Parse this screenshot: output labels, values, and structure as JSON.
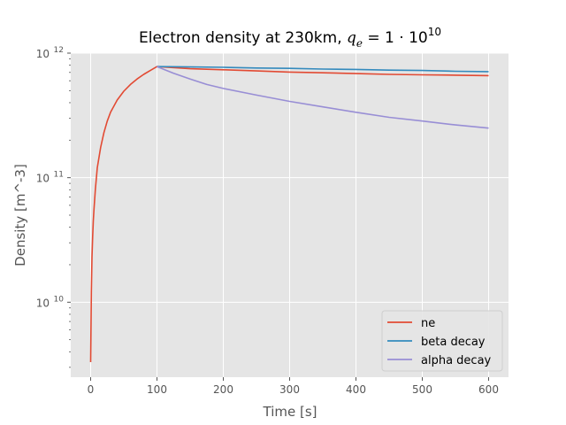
{
  "chart_data": {
    "type": "line",
    "title": "Electron density at 230km, q_e = 1·10^10",
    "title_parts": {
      "prefix": "Electron density at 230km, ",
      "q": "q",
      "sub": "e",
      "eq": " = 1 · 10",
      "sup": "10"
    },
    "xlabel": "Time [s]",
    "ylabel": "Density [m^-3]",
    "x_scale": "linear",
    "y_scale": "log",
    "xlim": [
      -30,
      630
    ],
    "ylim": [
      2500000000.0,
      1000000000000.0
    ],
    "xticks": [
      0,
      100,
      200,
      300,
      400,
      500,
      600
    ],
    "xtick_labels": [
      "0",
      "100",
      "200",
      "300",
      "400",
      "500",
      "600"
    ],
    "yticks": [
      10000000000.0,
      100000000000.0,
      1000000000000.0
    ],
    "ytick_labels": [
      {
        "base": "10",
        "exp": "10"
      },
      {
        "base": "10",
        "exp": "11"
      },
      {
        "base": "10",
        "exp": "12"
      }
    ],
    "grid": true,
    "legend_position": "lower-right",
    "background": "#e5e5e5",
    "series": [
      {
        "name": "ne",
        "color": "#e24a33",
        "x": [
          0,
          1,
          2,
          3,
          4,
          5,
          7,
          10,
          15,
          20,
          25,
          30,
          40,
          50,
          60,
          70,
          80,
          90,
          100,
          150,
          200,
          250,
          300,
          350,
          400,
          450,
          500,
          550,
          600
        ],
        "y": [
          3300000000.0,
          12000000000.0,
          23000000000.0,
          34000000000.0,
          45000000000.0,
          56000000000.0,
          80000000000.0,
          120000000000.0,
          175000000000.0,
          230000000000.0,
          285000000000.0,
          335000000000.0,
          420000000000.0,
          495000000000.0,
          560000000000.0,
          620000000000.0,
          675000000000.0,
          725000000000.0,
          780000000000.0,
          750000000000.0,
          735000000000.0,
          720000000000.0,
          705000000000.0,
          695000000000.0,
          685000000000.0,
          675000000000.0,
          670000000000.0,
          665000000000.0,
          660000000000.0
        ]
      },
      {
        "name": "beta decay",
        "color": "#348abd",
        "x": [
          100,
          150,
          200,
          250,
          300,
          350,
          400,
          450,
          500,
          550,
          600
        ],
        "y": [
          780000000000.0,
          775000000000.0,
          770000000000.0,
          760000000000.0,
          755000000000.0,
          745000000000.0,
          740000000000.0,
          730000000000.0,
          725000000000.0,
          715000000000.0,
          710000000000.0
        ]
      },
      {
        "name": "alpha decay",
        "color": "#988ed5",
        "x": [
          100,
          125,
          150,
          175,
          200,
          250,
          300,
          350,
          400,
          450,
          500,
          550,
          600
        ],
        "y": [
          780000000000.0,
          690000000000.0,
          620000000000.0,
          560000000000.0,
          520000000000.0,
          460000000000.0,
          410000000000.0,
          370000000000.0,
          335000000000.0,
          305000000000.0,
          285000000000.0,
          265000000000.0,
          250000000000.0
        ]
      }
    ]
  }
}
